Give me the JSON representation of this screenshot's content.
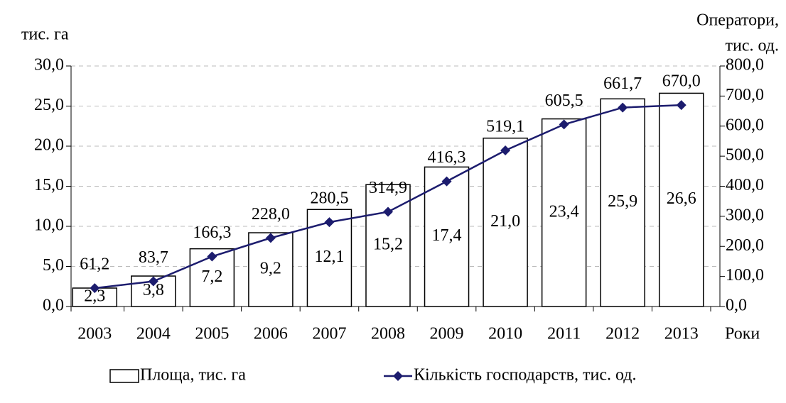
{
  "chart_data": {
    "type": "bar_line",
    "ylabel": "тис. га",
    "y2label": [
      "Оператори,",
      "тис. од."
    ],
    "xlabel": "Роки",
    "categories": [
      "2003",
      "2004",
      "2005",
      "2006",
      "2007",
      "2008",
      "2009",
      "2010",
      "2011",
      "2012",
      "2013"
    ],
    "series": [
      {
        "name": "Площа, тис. га",
        "type": "bar",
        "color": "#ffffff",
        "values": [
          2.3,
          3.8,
          7.2,
          9.2,
          12.1,
          15.2,
          17.4,
          21.0,
          23.4,
          25.9,
          26.6
        ],
        "value_labels": [
          "2,3",
          "3,8",
          "7,2",
          "9,2",
          "12,1",
          "15,2",
          "17,4",
          "21,0",
          "23,4",
          "25,9",
          "26,6"
        ]
      },
      {
        "name": "Кількість господарств, тис. од.",
        "type": "line",
        "axis": "y2",
        "color": "#1c1c6e",
        "values": [
          61.2,
          83.7,
          166.3,
          228.0,
          280.5,
          314.9,
          416.3,
          519.1,
          605.5,
          661.7,
          670.0
        ],
        "value_labels": [
          "61,2",
          "83,7",
          "166,3",
          "228,0",
          "280,5",
          "314,9",
          "416,3",
          "519,1",
          "605,5",
          "661,7",
          "670,0"
        ]
      }
    ],
    "ylim": [
      0,
      30
    ],
    "yticks": [
      {
        "value": 0,
        "label": "0,0"
      },
      {
        "value": 5,
        "label": "5,0"
      },
      {
        "value": 10,
        "label": "10,0"
      },
      {
        "value": 15,
        "label": "15,0"
      },
      {
        "value": 20,
        "label": "20,0"
      },
      {
        "value": 25,
        "label": "25,0"
      },
      {
        "value": 30,
        "label": "30,0"
      }
    ],
    "y2lim": [
      0,
      800
    ],
    "y2ticks": [
      {
        "value": 0,
        "label": "0,0"
      },
      {
        "value": 100,
        "label": "100,0"
      },
      {
        "value": 200,
        "label": "200,0"
      },
      {
        "value": 300,
        "label": "300,0"
      },
      {
        "value": 400,
        "label": "400,0"
      },
      {
        "value": 500,
        "label": "500,0"
      },
      {
        "value": 600,
        "label": "600,0"
      },
      {
        "value": 700,
        "label": "700,0"
      },
      {
        "value": 800,
        "label": "800,0"
      }
    ],
    "grid": true
  }
}
